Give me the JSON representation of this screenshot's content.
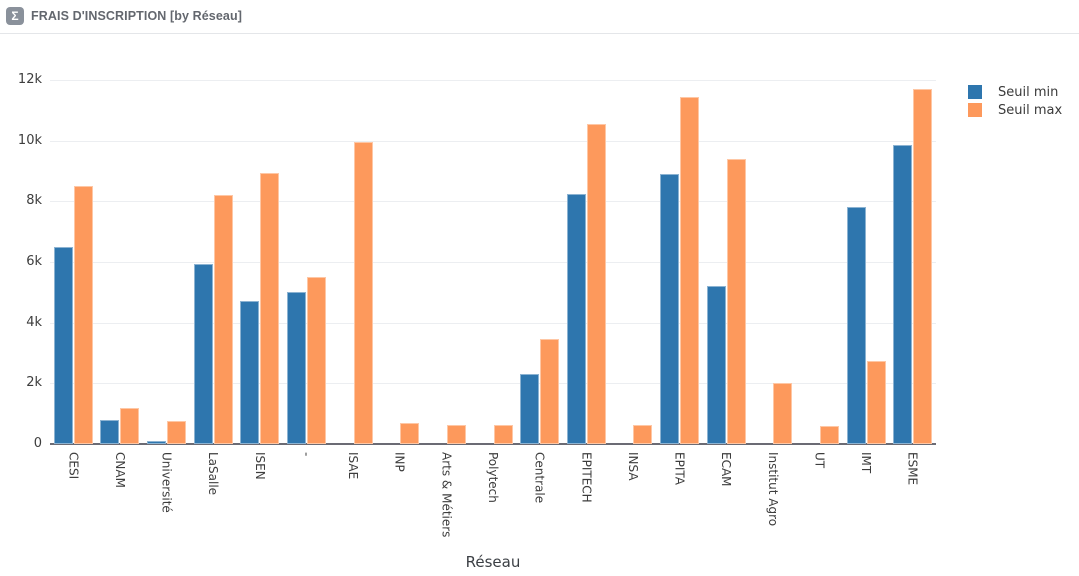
{
  "header": {
    "icon_glyph": "Σ",
    "title": "FRAIS D'INSCRIPTION [by Réseau]"
  },
  "chart_data": {
    "type": "bar",
    "title": "FRAIS D'INSCRIPTION [by Réseau]",
    "xlabel": "Réseau",
    "ylabel": "",
    "ylim": [
      0,
      12000
    ],
    "grid": true,
    "legend_position": "top-right",
    "yticks": [
      {
        "value": 0,
        "label": "0"
      },
      {
        "value": 2000,
        "label": "2k"
      },
      {
        "value": 4000,
        "label": "4k"
      },
      {
        "value": 6000,
        "label": "6k"
      },
      {
        "value": 8000,
        "label": "8k"
      },
      {
        "value": 10000,
        "label": "10k"
      },
      {
        "value": 12000,
        "label": "12k"
      }
    ],
    "categories": [
      "CESI",
      "CNAM",
      "Université",
      "LaSalle",
      "ISEN",
      "-",
      "ISAE",
      "INP",
      "Arts & Métiers",
      "Polytech",
      "Centrale",
      "EPITECH",
      "INSA",
      "EPITA",
      "ECAM",
      "Institut Agro",
      "UT",
      "IMT",
      "ESME"
    ],
    "series": [
      {
        "name": "Seuil min",
        "color": "#2e76ae",
        "values": [
          6500,
          800,
          100,
          5950,
          4700,
          5000,
          0,
          0,
          0,
          0,
          2300,
          8250,
          0,
          8900,
          5200,
          0,
          0,
          7800,
          9850
        ]
      },
      {
        "name": "Seuil max",
        "color": "#fd995c",
        "values": [
          8500,
          1200,
          750,
          8200,
          8950,
          5500,
          9950,
          700,
          620,
          620,
          3450,
          10550,
          620,
          11450,
          9400,
          2000,
          600,
          2750,
          11700
        ]
      }
    ]
  },
  "colors": {
    "seuil_min": "#2e76ae",
    "seuil_max": "#fd995c",
    "gridline": "#eceef1",
    "axis_line": "#6b6b74",
    "header_icon_bg": "#8a919b"
  }
}
